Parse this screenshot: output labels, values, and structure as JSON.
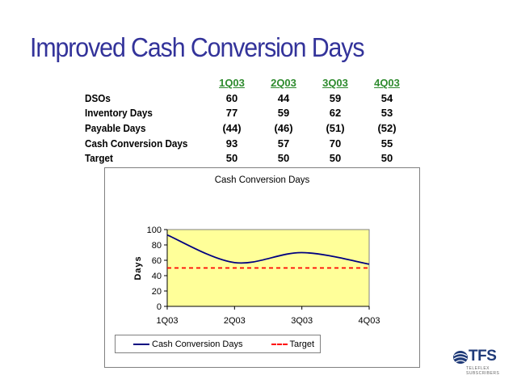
{
  "slide": {
    "title": "Improved Cash Conversion Days"
  },
  "table": {
    "quarters": [
      "1Q03",
      "2Q03",
      "3Q03",
      "4Q03"
    ],
    "rows": [
      {
        "label": "DSOs",
        "values": [
          "60",
          "44",
          "59",
          "54"
        ]
      },
      {
        "label": "Inventory Days",
        "values": [
          "77",
          "59",
          "62",
          "53"
        ]
      },
      {
        "label": "Payable Days",
        "values": [
          "(44)",
          "(46)",
          "(51)",
          "(52)"
        ]
      },
      {
        "label": "Cash Conversion Days",
        "values": [
          "93",
          "57",
          "70",
          "55"
        ]
      },
      {
        "label": "Target",
        "values": [
          "50",
          "50",
          "50",
          "50"
        ]
      }
    ]
  },
  "chart_data": {
    "type": "line",
    "title": "Cash Conversion Days",
    "xlabel": "",
    "ylabel": "Days",
    "categories": [
      "1Q03",
      "2Q03",
      "3Q03",
      "4Q03"
    ],
    "ylim": [
      0,
      100
    ],
    "yticks": [
      0,
      20,
      40,
      60,
      80,
      100
    ],
    "plot_background": "#ffff99",
    "grid": false,
    "legend_position": "bottom",
    "series": [
      {
        "name": "Cash Conversion Days",
        "values": [
          93,
          57,
          70,
          55
        ],
        "color": "#000080",
        "style": "solid-smooth"
      },
      {
        "name": "Target",
        "values": [
          50,
          50,
          50,
          50
        ],
        "color": "#ff0000",
        "style": "dashed"
      }
    ]
  },
  "logo": {
    "text": "TFS",
    "subtext": "TELEFLEX SUBSCRIBERS"
  },
  "colors": {
    "title": "#33339a",
    "quarter_header": "#2e8b2e"
  }
}
